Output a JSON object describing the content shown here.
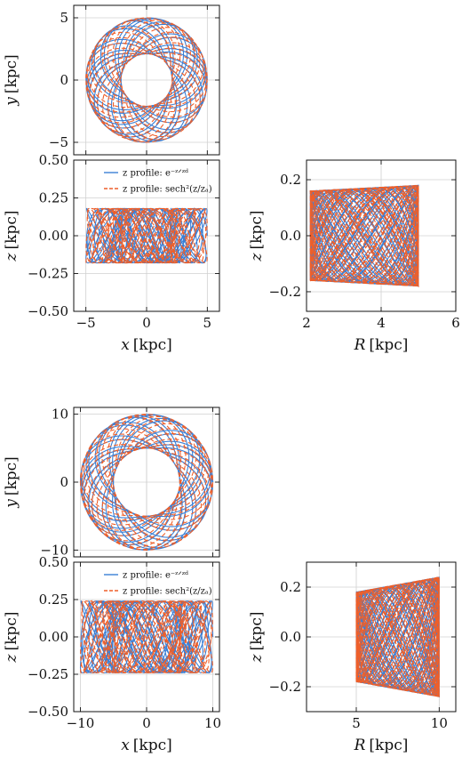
{
  "colors": {
    "exp": "#3a7fd5",
    "sech": "#ee5f2a"
  },
  "chart_data": [
    {
      "id": "top-xy",
      "type": "line",
      "xlabel": "",
      "ylabel": "y [kpc]",
      "xlim": [
        -6,
        6
      ],
      "ylim": [
        -6,
        6
      ],
      "yticks": [
        5,
        0,
        -5
      ],
      "ytick_labels": [
        "5",
        "0",
        "−5"
      ],
      "xticks": [],
      "xtick_labels": [],
      "grid": true,
      "orbit": {
        "projection": "xy",
        "r_min": 2.1,
        "r_max": 5.0
      },
      "series": [
        {
          "key": "exp"
        },
        {
          "key": "sech"
        }
      ]
    },
    {
      "id": "top-xz",
      "type": "line",
      "xlabel": "x [kpc]",
      "ylabel": "z [kpc]",
      "xlim": [
        -6,
        6
      ],
      "ylim": [
        -0.5,
        0.5
      ],
      "yticks": [
        0.5,
        0.25,
        0.0,
        -0.25,
        -0.5
      ],
      "ytick_labels": [
        "0.50",
        "0.25",
        "0.00",
        "−0.25",
        "−0.50"
      ],
      "xticks": [
        -5,
        0,
        5
      ],
      "xtick_labels": [
        "−5",
        "0",
        "5"
      ],
      "grid": true,
      "legend": "top-center",
      "orbit": {
        "projection": "xz",
        "r_min": 2.1,
        "r_max": 5.0,
        "z_amp": 0.18
      },
      "series": [
        {
          "key": "exp",
          "name": "z profile: e⁻ᶻᐟᶻᵈ"
        },
        {
          "key": "sech",
          "name": "z profile: sech²(z/zₐ)"
        }
      ]
    },
    {
      "id": "top-rz",
      "type": "line",
      "xlabel": "R [kpc]",
      "ylabel": "z [kpc]",
      "xlim": [
        2,
        6
      ],
      "ylim": [
        -0.27,
        0.27
      ],
      "yticks": [
        0.2,
        0.0,
        -0.2
      ],
      "ytick_labels": [
        "0.2",
        "0.0",
        "−0.2"
      ],
      "xticks": [
        2,
        4,
        6
      ],
      "xtick_labels": [
        "2",
        "4",
        "6"
      ],
      "grid": true,
      "orbit": {
        "projection": "rz",
        "r_min": 2.1,
        "r_max": 5.0,
        "z_in": 0.16,
        "z_out": 0.18
      },
      "series": [
        {
          "key": "exp"
        },
        {
          "key": "sech"
        }
      ]
    },
    {
      "id": "bottom-xy",
      "type": "line",
      "xlabel": "",
      "ylabel": "y [kpc]",
      "xlim": [
        -11,
        11
      ],
      "ylim": [
        -11,
        11
      ],
      "yticks": [
        10,
        0,
        -10
      ],
      "ytick_labels": [
        "10",
        "0",
        "−10"
      ],
      "xticks": [],
      "xtick_labels": [],
      "grid": true,
      "orbit": {
        "projection": "xy",
        "r_min": 5.0,
        "r_max": 10.0
      },
      "series": [
        {
          "key": "exp"
        },
        {
          "key": "sech"
        }
      ]
    },
    {
      "id": "bottom-xz",
      "type": "line",
      "xlabel": "x [kpc]",
      "ylabel": "z [kpc]",
      "xlim": [
        -11,
        11
      ],
      "ylim": [
        -0.5,
        0.5
      ],
      "yticks": [
        0.5,
        0.25,
        0.0,
        -0.25,
        -0.5
      ],
      "ytick_labels": [
        "0.50",
        "0.25",
        "0.00",
        "−0.25",
        "−0.50"
      ],
      "xticks": [
        -10,
        0,
        10
      ],
      "xtick_labels": [
        "−10",
        "0",
        "10"
      ],
      "grid": true,
      "legend": "top-center",
      "orbit": {
        "projection": "xz",
        "r_min": 5.0,
        "r_max": 10.0,
        "z_amp": 0.24
      },
      "series": [
        {
          "key": "exp",
          "name": "z profile: e⁻ᶻᐟᶻᵈ"
        },
        {
          "key": "sech",
          "name": "z profile: sech²(z/zₐ)"
        }
      ]
    },
    {
      "id": "bottom-rz",
      "type": "line",
      "xlabel": "R [kpc]",
      "ylabel": "z [kpc]",
      "xlim": [
        2,
        11
      ],
      "ylim": [
        -0.3,
        0.3
      ],
      "yticks": [
        0.2,
        0.0,
        -0.2
      ],
      "ytick_labels": [
        "0.2",
        "0.0",
        "−0.2"
      ],
      "xticks": [
        5,
        10
      ],
      "xtick_labels": [
        "5",
        "10"
      ],
      "grid": true,
      "orbit": {
        "projection": "rz",
        "r_min": 5.0,
        "r_max": 10.0,
        "z_in": 0.18,
        "z_out": 0.24
      },
      "series": [
        {
          "key": "exp"
        },
        {
          "key": "sech"
        }
      ]
    }
  ]
}
